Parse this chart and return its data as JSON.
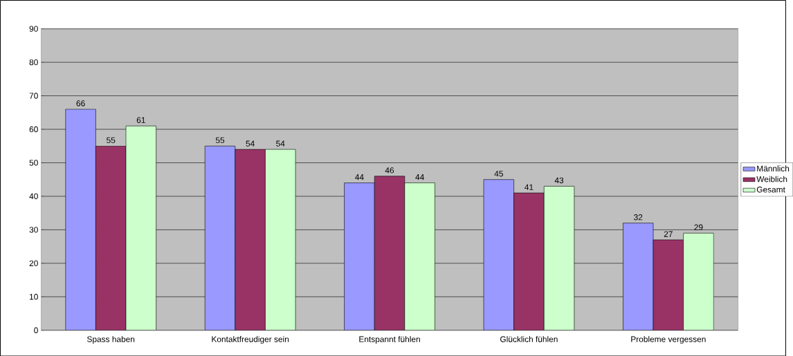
{
  "chart_data": {
    "type": "bar",
    "categories": [
      "Spass haben",
      "Kontaktfreudiger sein",
      "Entspannt fühlen",
      "Glücklich fühlen",
      "Probleme vergessen"
    ],
    "series": [
      {
        "name": "Männlich",
        "color": "#9999ff",
        "values": [
          66,
          55,
          44,
          45,
          32
        ]
      },
      {
        "name": "Weiblich",
        "color": "#993366",
        "values": [
          55,
          54,
          46,
          41,
          27
        ]
      },
      {
        "name": "Gesamt",
        "color": "#ccffcc",
        "values": [
          61,
          54,
          44,
          43,
          29
        ]
      }
    ],
    "ylim": [
      0,
      90
    ],
    "yticks": [
      0,
      10,
      20,
      30,
      40,
      50,
      60,
      70,
      80,
      90
    ],
    "grid": "y",
    "legend": "right",
    "data_labels": true
  }
}
